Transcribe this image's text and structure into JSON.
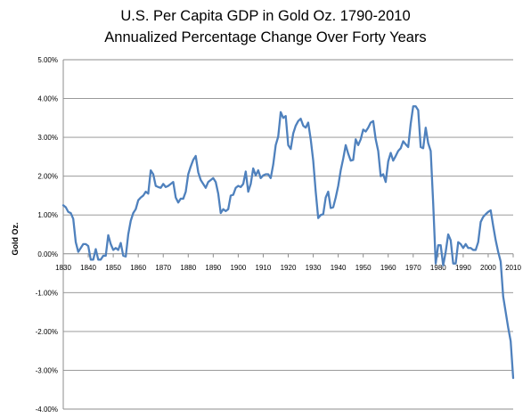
{
  "chart_data": {
    "type": "line",
    "title": "U.S. Per Capita GDP in Gold Oz. 1790-2010",
    "subtitle": "Annualized Percentage Change Over Forty Years",
    "xlabel": "",
    "ylabel": "Gold Oz.",
    "xlim": [
      1830,
      2010
    ],
    "ylim": [
      -4.0,
      5.0
    ],
    "x_ticks": [
      "1830",
      "1840",
      "1850",
      "1860",
      "1870",
      "1880",
      "1890",
      "1900",
      "1910",
      "1920",
      "1930",
      "1940",
      "1950",
      "1960",
      "1970",
      "1980",
      "1990",
      "2000",
      "2010"
    ],
    "y_ticks": [
      "5.00%",
      "4.00%",
      "3.00%",
      "2.00%",
      "1.00%",
      "0.00%",
      "-1.00%",
      "-2.00%",
      "-3.00%",
      "-4.00%"
    ],
    "grid": "horizontal",
    "legend": "none",
    "line_color": "#4f81bd",
    "series": [
      {
        "x": [
          1830,
          1831,
          1832,
          1833,
          1834,
          1835,
          1836,
          1837,
          1838,
          1839,
          1840,
          1841,
          1842,
          1843,
          1844,
          1845,
          1846,
          1847,
          1848,
          1849,
          1850,
          1851,
          1852,
          1853,
          1854,
          1855,
          1856,
          1857,
          1858,
          1859,
          1860,
          1861,
          1862,
          1863,
          1864,
          1865,
          1866,
          1867,
          1868,
          1869,
          1870,
          1871,
          1872,
          1873,
          1874,
          1875,
          1876,
          1877,
          1878,
          1879,
          1880,
          1881,
          1882,
          1883,
          1884,
          1885,
          1886,
          1887,
          1888,
          1889,
          1890,
          1891,
          1892,
          1893,
          1894,
          1895,
          1896,
          1897,
          1898,
          1899,
          1900,
          1901,
          1902,
          1903,
          1904,
          1905,
          1906,
          1907,
          1908,
          1909,
          1910,
          1911,
          1912,
          1913,
          1914,
          1915,
          1916,
          1917,
          1918,
          1919,
          1920,
          1921,
          1922,
          1923,
          1924,
          1925,
          1926,
          1927,
          1928,
          1929,
          1930,
          1931,
          1932,
          1933,
          1934,
          1935,
          1936,
          1937,
          1938,
          1939,
          1940,
          1941,
          1942,
          1943,
          1944,
          1945,
          1946,
          1947,
          1948,
          1949,
          1950,
          1951,
          1952,
          1953,
          1954,
          1955,
          1956,
          1957,
          1958,
          1959,
          1960,
          1961,
          1962,
          1963,
          1964,
          1965,
          1966,
          1967,
          1968,
          1969,
          1970,
          1971,
          1972,
          1973,
          1974,
          1975,
          1976,
          1977,
          1978,
          1979,
          1980,
          1981,
          1982,
          1983,
          1984,
          1985,
          1986,
          1987,
          1988,
          1989,
          1990,
          1991,
          1992,
          1993,
          1994,
          1995,
          1996,
          1997,
          1998,
          1999,
          2000,
          2001,
          2002,
          2003,
          2004,
          2005,
          2006,
          2007,
          2008,
          2009,
          2010
        ],
        "values": [
          1.25,
          1.2,
          1.08,
          1.05,
          0.9,
          0.3,
          0.05,
          0.15,
          0.25,
          0.25,
          0.2,
          -0.15,
          -0.15,
          0.12,
          -0.15,
          -0.15,
          -0.05,
          -0.05,
          0.48,
          0.25,
          0.1,
          0.15,
          0.1,
          0.28,
          -0.05,
          -0.07,
          0.5,
          0.85,
          1.05,
          1.15,
          1.38,
          1.45,
          1.5,
          1.6,
          1.55,
          2.15,
          2.05,
          1.75,
          1.72,
          1.7,
          1.8,
          1.72,
          1.75,
          1.8,
          1.85,
          1.45,
          1.32,
          1.42,
          1.42,
          1.6,
          2.05,
          2.25,
          2.42,
          2.52,
          2.1,
          1.9,
          1.8,
          1.7,
          1.85,
          1.9,
          1.95,
          1.85,
          1.55,
          1.05,
          1.15,
          1.1,
          1.15,
          1.5,
          1.52,
          1.7,
          1.75,
          1.72,
          1.8,
          2.12,
          1.6,
          1.8,
          2.2,
          2.02,
          2.15,
          1.95,
          2.02,
          2.05,
          2.05,
          1.95,
          2.3,
          2.8,
          3.02,
          3.65,
          3.5,
          3.55,
          2.8,
          2.7,
          3.1,
          3.3,
          3.42,
          3.48,
          3.3,
          3.25,
          3.38,
          2.95,
          2.4,
          1.6,
          0.92,
          1.0,
          1.02,
          1.45,
          1.6,
          1.18,
          1.2,
          1.45,
          1.75,
          2.15,
          2.45,
          2.8,
          2.58,
          2.4,
          2.42,
          2.95,
          2.8,
          2.95,
          3.2,
          3.15,
          3.25,
          3.38,
          3.42,
          2.95,
          2.65,
          2.0,
          2.05,
          1.85,
          2.38,
          2.6,
          2.4,
          2.52,
          2.65,
          2.72,
          2.9,
          2.82,
          2.75,
          3.35,
          3.8,
          3.8,
          3.7,
          2.75,
          2.72,
          3.25,
          2.85,
          2.65,
          1.3,
          -0.25,
          0.22,
          0.22,
          -0.3,
          0.05,
          0.5,
          0.35,
          -0.25,
          -0.25,
          0.3,
          0.25,
          0.15,
          0.25,
          0.15,
          0.15,
          0.1,
          0.1,
          0.3,
          0.82,
          0.95,
          1.02,
          1.08,
          1.12,
          0.72,
          0.35,
          0.05,
          -0.2,
          -1.1,
          -1.5,
          -1.9,
          -2.25,
          -3.2
        ]
      }
    ]
  }
}
